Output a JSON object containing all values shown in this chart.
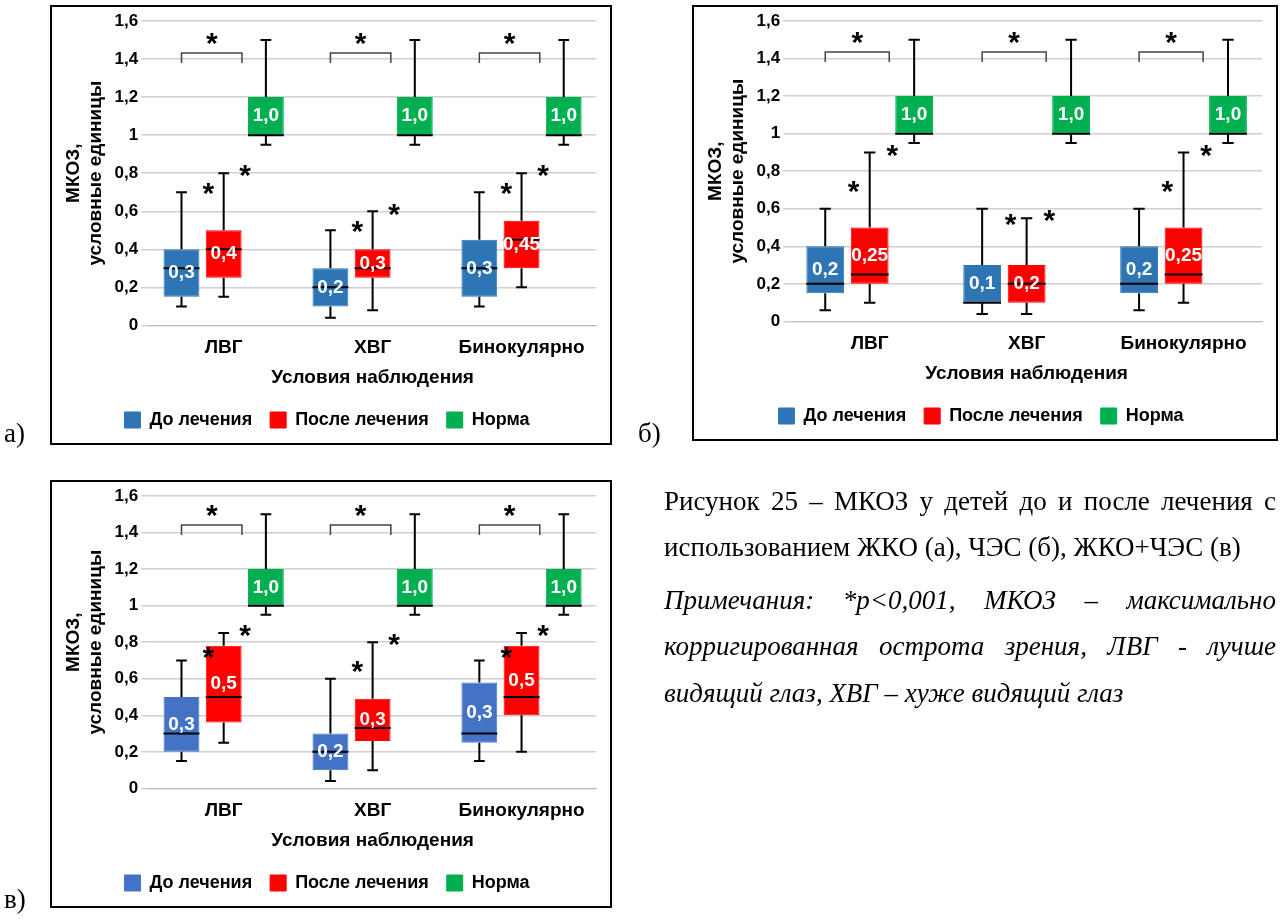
{
  "chart_data": [
    {
      "type": "box",
      "xlabel": "Условия наблюдения",
      "ylabel": "МКОЗ,\nусловные единицы",
      "categories": [
        "ЛВГ",
        "ХВГ",
        "Бинокулярно"
      ],
      "series": [
        {
          "name": "До лечения",
          "color": "#2e75b6",
          "boxes": [
            {
              "low": 0.1,
              "q1": 0.15,
              "median": 0.3,
              "q3": 0.4,
              "high": 0.7
            },
            {
              "low": 0.04,
              "q1": 0.1,
              "median": 0.2,
              "q3": 0.3,
              "high": 0.5
            },
            {
              "low": 0.1,
              "q1": 0.15,
              "median": 0.3,
              "q3": 0.45,
              "high": 0.7
            }
          ],
          "value_labels": [
            "0,3",
            "0,2",
            "0,3"
          ]
        },
        {
          "name": "После лечения",
          "color": "#ff0000",
          "boxes": [
            {
              "low": 0.15,
              "q1": 0.25,
              "median": 0.4,
              "q3": 0.5,
              "high": 0.8
            },
            {
              "low": 0.08,
              "q1": 0.25,
              "median": 0.3,
              "q3": 0.4,
              "high": 0.6
            },
            {
              "low": 0.2,
              "q1": 0.3,
              "median": 0.45,
              "q3": 0.55,
              "high": 0.8
            }
          ],
          "value_labels": [
            "0,4",
            "0,3",
            "0,45"
          ]
        },
        {
          "name": "Норма",
          "color": "#00b050",
          "boxes": [
            {
              "low": 0.95,
              "q1": 1.0,
              "median": 1.0,
              "q3": 1.2,
              "high": 1.5
            },
            {
              "low": 0.95,
              "q1": 1.0,
              "median": 1.0,
              "q3": 1.2,
              "high": 1.5
            },
            {
              "low": 0.95,
              "q1": 1.0,
              "median": 1.0,
              "q3": 1.2,
              "high": 1.5
            }
          ],
          "value_labels": [
            "1,0",
            "1,0",
            "1,0"
          ]
        }
      ],
      "annotations": [
        "а)",
        "*",
        "*",
        "*",
        "*",
        "*",
        "*",
        "*",
        "*",
        "*"
      ],
      "ylim": [
        0,
        1.6
      ],
      "yticks": [
        {
          "value": 0,
          "label": "0"
        },
        {
          "value": 0.2,
          "label": "0,2"
        },
        {
          "value": 0.4,
          "label": "0,4"
        },
        {
          "value": 0.6,
          "label": "0,6"
        },
        {
          "value": 0.8,
          "label": "0,8"
        },
        {
          "value": 1,
          "label": "1"
        },
        {
          "value": 1.2,
          "label": "1,2"
        },
        {
          "value": 1.4,
          "label": "1,4"
        },
        {
          "value": 1.6,
          "label": "1,6"
        }
      ],
      "grid": "y",
      "legend": "bottom"
    },
    {
      "type": "box",
      "xlabel": "Условия наблюдения",
      "ylabel": "МКОЗ,\nусловные единицы",
      "categories": [
        "ЛВГ",
        "ХВГ",
        "Бинокулярно"
      ],
      "series": [
        {
          "name": "До лечения",
          "color": "#2e75b6",
          "boxes": [
            {
              "low": 0.06,
              "q1": 0.15,
              "median": 0.2,
              "q3": 0.4,
              "high": 0.6
            },
            {
              "low": 0.04,
              "q1": 0.1,
              "median": 0.1,
              "q3": 0.3,
              "high": 0.6
            },
            {
              "low": 0.06,
              "q1": 0.15,
              "median": 0.2,
              "q3": 0.4,
              "high": 0.6
            }
          ],
          "value_labels": [
            "0,2",
            "0,1",
            "0,2"
          ]
        },
        {
          "name": "После лечения",
          "color": "#ff0000",
          "boxes": [
            {
              "low": 0.1,
              "q1": 0.2,
              "median": 0.25,
              "q3": 0.5,
              "high": 0.9
            },
            {
              "low": 0.04,
              "q1": 0.1,
              "median": 0.2,
              "q3": 0.3,
              "high": 0.55
            },
            {
              "low": 0.1,
              "q1": 0.2,
              "median": 0.25,
              "q3": 0.5,
              "high": 0.9
            }
          ],
          "value_labels": [
            "0,25",
            "0,2",
            "0,25"
          ]
        },
        {
          "name": "Норма",
          "color": "#00b050",
          "boxes": [
            {
              "low": 0.95,
              "q1": 1.0,
              "median": 1.0,
              "q3": 1.2,
              "high": 1.5
            },
            {
              "low": 0.95,
              "q1": 1.0,
              "median": 1.0,
              "q3": 1.2,
              "high": 1.5
            },
            {
              "low": 0.95,
              "q1": 1.0,
              "median": 1.0,
              "q3": 1.2,
              "high": 1.5
            }
          ],
          "value_labels": [
            "1,0",
            "1,0",
            "1,0"
          ]
        }
      ],
      "annotations": [
        "б)",
        "*",
        "*",
        "*",
        "*",
        "*",
        "*",
        "*",
        "*",
        "*"
      ],
      "ylim": [
        0,
        1.6
      ],
      "yticks": [
        {
          "value": 0,
          "label": "0"
        },
        {
          "value": 0.2,
          "label": "0,2"
        },
        {
          "value": 0.4,
          "label": "0,4"
        },
        {
          "value": 0.6,
          "label": "0,6"
        },
        {
          "value": 0.8,
          "label": "0,8"
        },
        {
          "value": 1,
          "label": "1"
        },
        {
          "value": 1.2,
          "label": "1,2"
        },
        {
          "value": 1.4,
          "label": "1,4"
        },
        {
          "value": 1.6,
          "label": "1,6"
        }
      ],
      "grid": "y",
      "legend": "bottom"
    },
    {
      "type": "box",
      "xlabel": "Условия наблюдения",
      "ylabel": "МКОЗ,\nусловные единицы",
      "categories": [
        "ЛВГ",
        "ХВГ",
        "Бинокулярно"
      ],
      "series": [
        {
          "name": "До лечения",
          "color": "#4472c4",
          "boxes": [
            {
              "low": 0.15,
              "q1": 0.2,
              "median": 0.3,
              "q3": 0.5,
              "high": 0.7
            },
            {
              "low": 0.04,
              "q1": 0.1,
              "median": 0.2,
              "q3": 0.3,
              "high": 0.6
            },
            {
              "low": 0.15,
              "q1": 0.25,
              "median": 0.3,
              "q3": 0.58,
              "high": 0.7
            }
          ],
          "value_labels": [
            "0,3",
            "0,2",
            "0,3"
          ]
        },
        {
          "name": "После лечения",
          "color": "#ff0000",
          "boxes": [
            {
              "low": 0.25,
              "q1": 0.36,
              "median": 0.5,
              "q3": 0.78,
              "high": 0.85
            },
            {
              "low": 0.1,
              "q1": 0.26,
              "median": 0.33,
              "q3": 0.49,
              "high": 0.8
            },
            {
              "low": 0.2,
              "q1": 0.4,
              "median": 0.5,
              "q3": 0.78,
              "high": 0.85
            }
          ],
          "value_labels": [
            "0,5",
            "0,3",
            "0,5"
          ]
        },
        {
          "name": "Норма",
          "color": "#00b050",
          "boxes": [
            {
              "low": 0.95,
              "q1": 1.0,
              "median": 1.0,
              "q3": 1.2,
              "high": 1.5
            },
            {
              "low": 0.95,
              "q1": 1.0,
              "median": 1.0,
              "q3": 1.2,
              "high": 1.5
            },
            {
              "low": 0.95,
              "q1": 1.0,
              "median": 1.0,
              "q3": 1.2,
              "high": 1.5
            }
          ],
          "value_labels": [
            "1,0",
            "1,0",
            "1,0"
          ]
        }
      ],
      "annotations": [
        "в)",
        "*",
        "*",
        "*",
        "*",
        "*",
        "*",
        "*",
        "*",
        "*"
      ],
      "ylim": [
        0,
        1.6
      ],
      "yticks": [
        {
          "value": 0,
          "label": "0"
        },
        {
          "value": 0.2,
          "label": "0,2"
        },
        {
          "value": 0.4,
          "label": "0,4"
        },
        {
          "value": 0.6,
          "label": "0,6"
        },
        {
          "value": 0.8,
          "label": "0,8"
        },
        {
          "value": 1,
          "label": "1"
        },
        {
          "value": 1.2,
          "label": "1,2"
        },
        {
          "value": 1.4,
          "label": "1,4"
        },
        {
          "value": 1.6,
          "label": "1,6"
        }
      ],
      "grid": "y",
      "legend": "bottom"
    },
    {
      "type": "other",
      "title": "Рисунок 25 – МКОЗ у детей до и после лечения с использованием ЖКО (а), ЧЭС (б), ЖКО+ЧЭС (в)",
      "annotations": [
        "Примечания: *p<0,001, МКОЗ – максимально корригированная острота зрения, ЛВГ - лучше видящий глаз, ХВГ – хуже видящий глаз"
      ]
    }
  ]
}
